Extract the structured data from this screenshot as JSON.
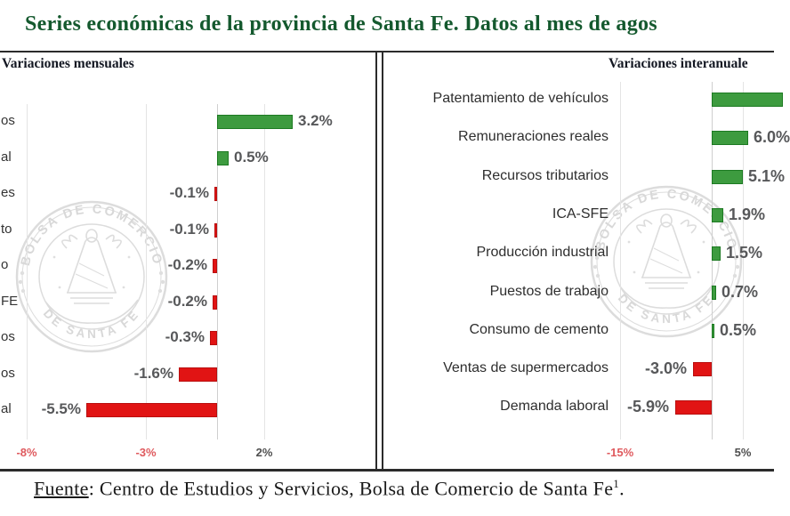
{
  "title": "Series económicas de la provincia de Santa Fe. Datos al mes de agos",
  "footer": {
    "label": "Fuente",
    "text": ": Centro de Estudios y Servicios, Bolsa de Comercio de Santa Fe",
    "superscript": "1",
    "period": "."
  },
  "watermark": {
    "top_text": "BOLSA DE COMERCIO",
    "bottom_text": "DE SANTA FE"
  },
  "colors": {
    "title_green": "#14592e",
    "bar_positive": "#3d9b3f",
    "bar_negative": "#e11414",
    "value_gray": "#57585a",
    "tick_negative_red": "#df5a5e",
    "frame_dark": "#2b2b2b",
    "watermark_gray": "#d4d4d4"
  },
  "chart_data": [
    {
      "type": "bar",
      "orientation": "horizontal",
      "title": "Variaciones mensuales",
      "categories": [
        "os",
        "al",
        "es",
        "to",
        "o",
        "FE",
        "os",
        "os",
        "al"
      ],
      "categories_note": "category names clipped at left edge of screenshot; only word endings visible",
      "values": [
        3.2,
        0.5,
        -0.1,
        -0.1,
        -0.2,
        -0.2,
        -0.3,
        -1.6,
        -5.5
      ],
      "value_labels": [
        "3.2%",
        "0.5%",
        "-0.1%",
        "-0.1%",
        "-0.2%",
        "-0.2%",
        "-0.3%",
        "-1.6%",
        "-5.5%"
      ],
      "x_ticks": [
        {
          "label": "-8%",
          "value": -8
        },
        {
          "label": "-3%",
          "value": -3
        },
        {
          "label": "2%",
          "value": 2
        }
      ],
      "grid": true,
      "legend": false
    },
    {
      "type": "bar",
      "orientation": "horizontal",
      "title": "Variaciones interanuale",
      "categories": [
        "Patentamiento de vehículos",
        "Remuneraciones reales",
        "Recursos tributarios",
        "ICA-SFE",
        "Producción industrial",
        "Puestos de trabajo",
        "Consumo de cemento",
        "Ventas de supermercados",
        "Demanda laboral"
      ],
      "values": [
        null,
        6.0,
        5.1,
        1.9,
        1.5,
        0.7,
        0.5,
        -3.0,
        -5.9
      ],
      "value_labels": [
        "",
        "6.0%",
        "5.1%",
        "1.9%",
        "1.5%",
        "0.7%",
        "0.5%",
        "-3.0%",
        "-5.9%"
      ],
      "first_bar_clipped_at_right": true,
      "x_ticks": [
        {
          "label": "-15%",
          "value": -15
        },
        {
          "label": "5%",
          "value": 5
        }
      ],
      "grid": true,
      "legend": false
    }
  ]
}
